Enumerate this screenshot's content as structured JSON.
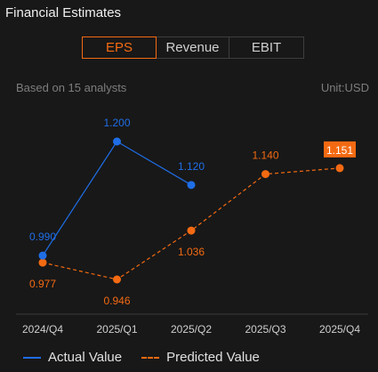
{
  "header": {
    "title": "Financial Estimates"
  },
  "tabs": [
    {
      "label": "EPS",
      "active": true
    },
    {
      "label": "Revenue",
      "active": false
    },
    {
      "label": "EBIT",
      "active": false
    }
  ],
  "info": {
    "analysts": "Based on 15 analysts",
    "unit": "Unit:USD"
  },
  "legend": {
    "actual": "Actual Value",
    "predicted": "Predicted Value"
  },
  "colors": {
    "actual": "#1f6ee6",
    "predicted": "#f46a12",
    "highlight_bg": "#f46a12"
  },
  "chart_data": {
    "type": "line",
    "categories": [
      "2024/Q4",
      "2025/Q1",
      "2025/Q2",
      "2025/Q3",
      "2025/Q4"
    ],
    "series": [
      {
        "name": "Actual Value",
        "values": [
          0.99,
          1.2,
          1.12,
          null,
          null
        ],
        "labels": [
          "0.990",
          "1.200",
          "1.120",
          "",
          ""
        ],
        "style": "solid"
      },
      {
        "name": "Predicted Value",
        "values": [
          0.977,
          0.946,
          1.036,
          1.14,
          1.151
        ],
        "labels": [
          "0.977",
          "0.946",
          "1.036",
          "1.140",
          "1.151"
        ],
        "style": "dashed"
      }
    ],
    "highlighted": {
      "series": "Predicted Value",
      "index": 4
    },
    "ylim": [
      0.9,
      1.25
    ],
    "grid": false,
    "legend_position": "bottom"
  }
}
